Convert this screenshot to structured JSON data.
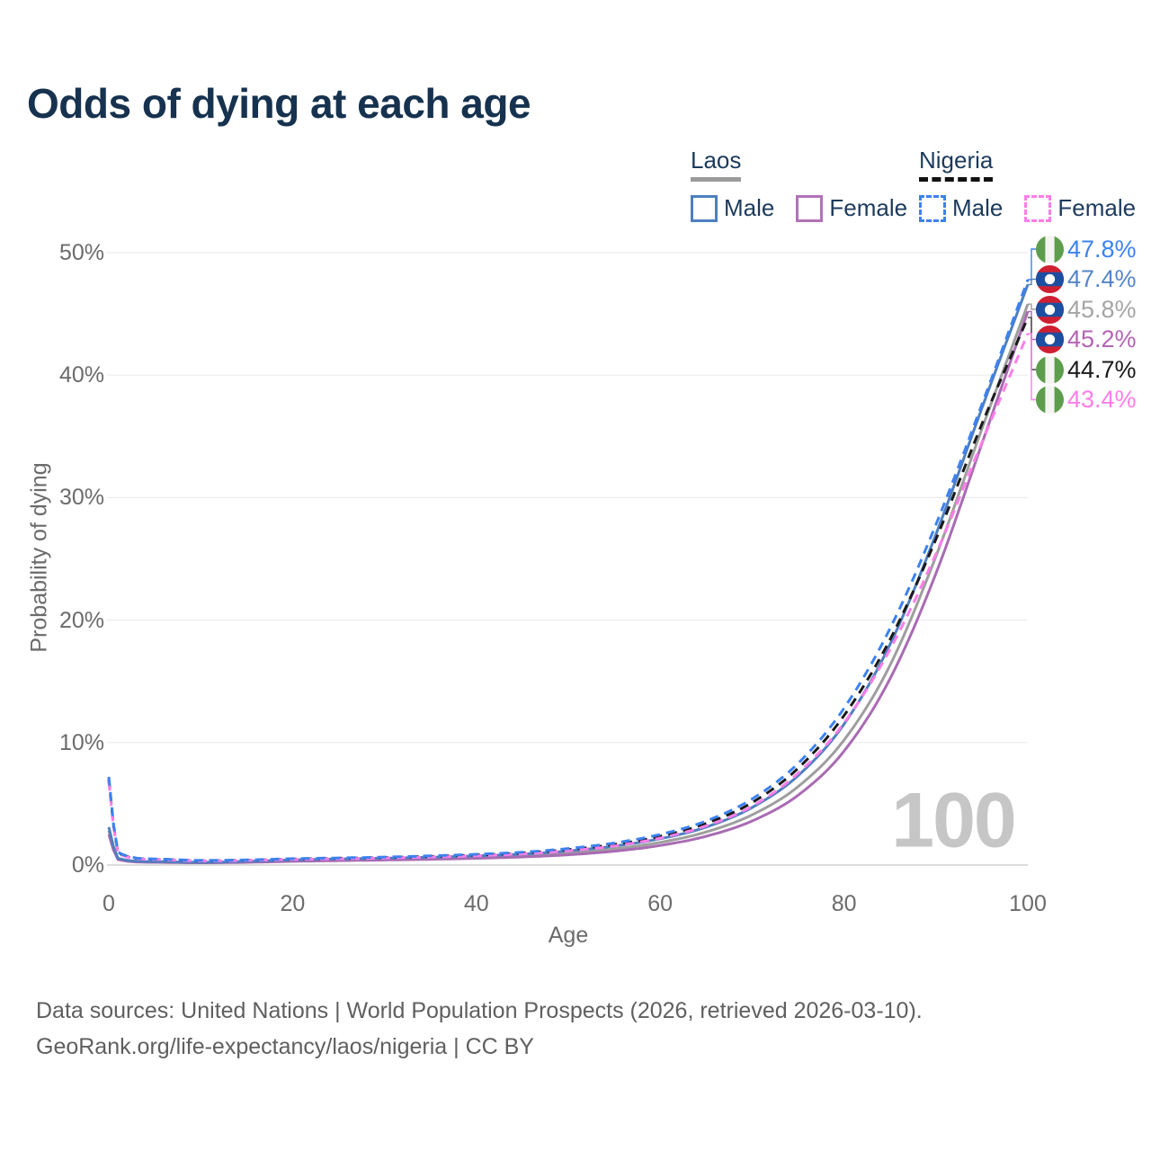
{
  "title": "Odds of dying at each age",
  "watermark_age": "100",
  "legend": {
    "groups": [
      {
        "name": "Laos",
        "line_style": "solid",
        "items": [
          {
            "label": "Male",
            "color": "#4f7fbf"
          },
          {
            "label": "Female",
            "color": "#b172b8"
          }
        ]
      },
      {
        "name": "Nigeria",
        "line_style": "dashed",
        "items": [
          {
            "label": "Male",
            "color": "#3d82f0"
          },
          {
            "label": "Female",
            "color": "#ff7de9"
          }
        ]
      }
    ]
  },
  "chart_data": {
    "type": "line",
    "title": "Odds of dying at each age",
    "xlabel": "Age",
    "ylabel": "Probability of dying",
    "xlim": [
      0,
      100
    ],
    "ylim": [
      0,
      50
    ],
    "x_ticks": [
      0,
      20,
      40,
      60,
      80,
      100
    ],
    "y_ticks": [
      0,
      10,
      20,
      30,
      40,
      50
    ],
    "y_tick_suffix": "%",
    "grid": "horizontal",
    "legend_position": "top-right",
    "hovered_x": 100,
    "x": [
      0,
      1,
      5,
      10,
      15,
      20,
      25,
      30,
      35,
      40,
      45,
      50,
      55,
      60,
      65,
      70,
      75,
      80,
      85,
      90,
      95,
      100
    ],
    "series": [
      {
        "name": "Laos",
        "flag": "laos",
        "dashed": false,
        "color": "#9e9e9e",
        "label_color": "#a5a5a5",
        "end_label": "45.8%",
        "values": [
          2.8,
          0.5,
          0.25,
          0.2,
          0.26,
          0.36,
          0.43,
          0.48,
          0.55,
          0.64,
          0.77,
          0.98,
          1.32,
          1.85,
          2.7,
          4.1,
          6.4,
          10.2,
          16.3,
          25.2,
          35.6,
          45.8
        ]
      },
      {
        "name": "Laos Female",
        "flag": "laos",
        "dashed": false,
        "color": "#a96bb3",
        "label_color": "#b365b3",
        "end_label": "45.2%",
        "values": [
          2.5,
          0.45,
          0.22,
          0.18,
          0.22,
          0.3,
          0.36,
          0.41,
          0.47,
          0.55,
          0.66,
          0.84,
          1.13,
          1.6,
          2.35,
          3.6,
          5.7,
          9.3,
          15.2,
          23.8,
          34.4,
          45.2
        ]
      },
      {
        "name": "Laos Male",
        "flag": "laos",
        "dashed": false,
        "color": "#4f7fbf",
        "label_color": "#5585c7",
        "end_label": "47.4%",
        "values": [
          3.1,
          0.55,
          0.28,
          0.23,
          0.3,
          0.42,
          0.5,
          0.56,
          0.64,
          0.75,
          0.9,
          1.15,
          1.55,
          2.15,
          3.1,
          4.7,
          7.3,
          11.5,
          18.0,
          27.0,
          37.3,
          47.4
        ]
      },
      {
        "name": "Nigeria",
        "flag": "nigeria",
        "dashed": true,
        "color": "#1a1a1a",
        "label_color": "#1a1a1a",
        "end_label": "44.7%",
        "values": [
          7.0,
          1.0,
          0.48,
          0.36,
          0.4,
          0.49,
          0.55,
          0.61,
          0.7,
          0.82,
          0.98,
          1.26,
          1.68,
          2.35,
          3.4,
          5.1,
          7.9,
          12.2,
          18.4,
          26.6,
          36.0,
          44.7
        ]
      },
      {
        "name": "Nigeria Female",
        "flag": "nigeria",
        "dashed": true,
        "color": "#ff7de9",
        "label_color": "#ff7de9",
        "end_label": "43.4%",
        "values": [
          6.8,
          0.95,
          0.46,
          0.34,
          0.38,
          0.46,
          0.51,
          0.57,
          0.65,
          0.76,
          0.91,
          1.17,
          1.56,
          2.2,
          3.2,
          4.8,
          7.5,
          11.6,
          17.6,
          25.4,
          34.5,
          43.4
        ]
      },
      {
        "name": "Nigeria Male",
        "flag": "nigeria",
        "dashed": true,
        "color": "#3d82f0",
        "label_color": "#3d82f0",
        "end_label": "47.8%",
        "values": [
          7.2,
          1.05,
          0.5,
          0.38,
          0.42,
          0.52,
          0.58,
          0.65,
          0.75,
          0.88,
          1.05,
          1.35,
          1.8,
          2.5,
          3.6,
          5.4,
          8.3,
          12.8,
          19.3,
          27.8,
          37.6,
          47.8
        ]
      }
    ]
  },
  "flag_colors": {
    "nigeria_green": "#5d9e4c",
    "nigeria_white": "#f4f4f1",
    "laos_red": "#ce2032",
    "laos_blue": "#1c4fa1",
    "laos_white": "#ffffff"
  },
  "footer": {
    "line1": "Data sources: United Nations | World Population Prospects (2026, retrieved 2026-03-10).",
    "line2": "GeoRank.org/life-expectancy/laos/nigeria | CC BY"
  }
}
